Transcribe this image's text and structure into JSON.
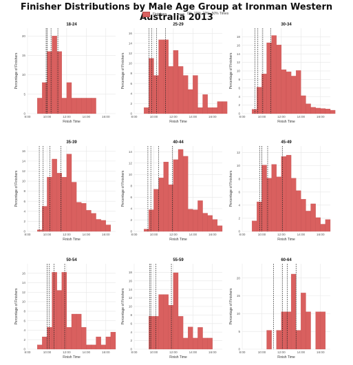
{
  "title": "Finisher Distributions by Male Age Group at Ironman Western Australia 2013",
  "legend": {
    "finishers_label": "Finishers",
    "times_label": "0%, 10%, 20%, 50% Times"
  },
  "colors": {
    "bar": "#d9605f",
    "bar_edge": "#c04d4d",
    "grid": "#e6e6e6",
    "line": "#222222"
  },
  "chart_data": [
    {
      "type": "bar",
      "title": "18-24",
      "xlabel": "Finish Time",
      "ylabel": "Percentage of Finishers",
      "xlim": [
        8,
        17
      ],
      "ylim": [
        0,
        22
      ],
      "xticks": [
        {
          "v": 8,
          "label": "8:00"
        },
        {
          "v": 10,
          "label": "10:00"
        },
        {
          "v": 12,
          "label": "12:00"
        },
        {
          "v": 14,
          "label": "14:00"
        },
        {
          "v": 16,
          "label": "16:00"
        }
      ],
      "yticks": [
        0,
        5,
        10,
        15,
        20
      ],
      "bin_start": 9.0,
      "bin_width": 0.5,
      "values": [
        4,
        8,
        16,
        20,
        16,
        4,
        8,
        4,
        4,
        4,
        4,
        4
      ],
      "marker_times": [
        9.9,
        10.0,
        10.4,
        11.1
      ]
    },
    {
      "type": "bar",
      "title": "25-29",
      "xlabel": "Finish Time",
      "ylabel": "Percentage of Finishers",
      "xlim": [
        8,
        17
      ],
      "ylim": [
        0,
        17
      ],
      "xticks": [
        {
          "v": 8,
          "label": "8:00"
        },
        {
          "v": 10,
          "label": "10:00"
        },
        {
          "v": 12,
          "label": "12:00"
        },
        {
          "v": 14,
          "label": "14:00"
        },
        {
          "v": 16,
          "label": "16:00"
        }
      ],
      "yticks": [
        0,
        2,
        4,
        6,
        8,
        10,
        12,
        14,
        16
      ],
      "bin_start": 9.0,
      "bin_width": 0.5,
      "values": [
        1.2,
        11,
        7.6,
        14.7,
        14.7,
        9.4,
        12.6,
        9.4,
        7.6,
        4.8,
        7.6,
        1.2,
        3.8,
        1.2,
        1.2,
        2.4,
        2.4
      ],
      "marker_times": [
        9.5,
        9.8,
        10.3,
        11.2
      ]
    },
    {
      "type": "bar",
      "title": "30-34",
      "xlabel": "Finish Time",
      "ylabel": "Percentage of Finishers",
      "xlim": [
        8,
        17
      ],
      "ylim": [
        0,
        20
      ],
      "xticks": [
        {
          "v": 8,
          "label": "8:00"
        },
        {
          "v": 10,
          "label": "10:00"
        },
        {
          "v": 12,
          "label": "12:00"
        },
        {
          "v": 14,
          "label": "14:00"
        },
        {
          "v": 16,
          "label": "16:00"
        }
      ],
      "yticks": [
        0,
        2,
        4,
        6,
        8,
        10,
        12,
        14,
        16,
        18
      ],
      "bin_start": 9.0,
      "bin_width": 0.5,
      "values": [
        1,
        6.2,
        9.3,
        16.6,
        18.3,
        16.1,
        10.3,
        9.8,
        8.8,
        10.1,
        4.2,
        2.3,
        1.5,
        1.3,
        1.2,
        1.1,
        0.8
      ],
      "marker_times": [
        9.3,
        9.6,
        10.1,
        10.9
      ]
    },
    {
      "type": "bar",
      "title": "35-39",
      "xlabel": "Finish Time",
      "ylabel": "Percentage of Finishers",
      "xlim": [
        8,
        17
      ],
      "ylim": [
        0,
        17
      ],
      "xticks": [
        {
          "v": 8,
          "label": "8:00"
        },
        {
          "v": 10,
          "label": "10:00"
        },
        {
          "v": 12,
          "label": "12:00"
        },
        {
          "v": 14,
          "label": "14:00"
        },
        {
          "v": 16,
          "label": "16:00"
        }
      ],
      "yticks": [
        0,
        2,
        4,
        6,
        8,
        10,
        12,
        14,
        16
      ],
      "bin_start": 9.0,
      "bin_width": 0.5,
      "values": [
        0.3,
        5,
        10.8,
        14.4,
        11.6,
        10.8,
        15.4,
        9.8,
        5.8,
        5.6,
        4.2,
        3.6,
        2.4,
        2.2,
        1.3
      ],
      "marker_times": [
        9.2,
        9.6,
        10.3,
        11.4
      ]
    },
    {
      "type": "bar",
      "title": "40-44",
      "xlabel": "Finish Time",
      "ylabel": "Percentage of Finishers",
      "xlim": [
        8,
        17
      ],
      "ylim": [
        0,
        15
      ],
      "xticks": [
        {
          "v": 8,
          "label": "8:00"
        },
        {
          "v": 10,
          "label": "10:00"
        },
        {
          "v": 12,
          "label": "12:00"
        },
        {
          "v": 14,
          "label": "14:00"
        },
        {
          "v": 16,
          "label": "16:00"
        }
      ],
      "yticks": [
        0,
        2,
        4,
        6,
        8,
        10,
        12,
        14
      ],
      "bin_start": 9.0,
      "bin_width": 0.5,
      "values": [
        0.4,
        3.8,
        7.4,
        9.4,
        12.2,
        8.2,
        12.6,
        14.4,
        13.2,
        3.9,
        3.8,
        5.4,
        3.2,
        2.8,
        2.1,
        1.0
      ],
      "marker_times": [
        9.4,
        9.7,
        10.5,
        11.9
      ]
    },
    {
      "type": "bar",
      "title": "45-49",
      "xlabel": "Finish Time",
      "ylabel": "Percentage of Finishers",
      "xlim": [
        8,
        17
      ],
      "ylim": [
        0,
        13
      ],
      "xticks": [
        {
          "v": 8,
          "label": "8:00"
        },
        {
          "v": 10,
          "label": "10:00"
        },
        {
          "v": 12,
          "label": "12:00"
        },
        {
          "v": 14,
          "label": "14:00"
        },
        {
          "v": 16,
          "label": "16:00"
        }
      ],
      "yticks": [
        0,
        2,
        4,
        6,
        8,
        10,
        12
      ],
      "bin_start": 9.0,
      "bin_width": 0.5,
      "values": [
        1.6,
        4.5,
        10.1,
        8.1,
        10.2,
        8.3,
        11.4,
        11.6,
        8.1,
        6.2,
        4.9,
        3.1,
        4.2,
        2.1,
        1.1,
        1.8
      ],
      "marker_times": [
        9.8,
        10.0,
        10.6,
        12.1
      ]
    },
    {
      "type": "bar",
      "title": "50-54",
      "xlabel": "Finish Time",
      "ylabel": "Percentage of Finishers",
      "xlim": [
        8,
        17
      ],
      "ylim": [
        0,
        18
      ],
      "xticks": [
        {
          "v": 8,
          "label": "8:00"
        },
        {
          "v": 10,
          "label": "10:00"
        },
        {
          "v": 12,
          "label": "12:00"
        },
        {
          "v": 14,
          "label": "14:00"
        },
        {
          "v": 16,
          "label": "16:00"
        }
      ],
      "yticks": [
        0,
        2,
        4,
        6,
        8,
        10,
        12,
        14,
        16
      ],
      "bin_start": 9.0,
      "bin_width": 0.5,
      "values": [
        0.9,
        2.6,
        4.6,
        16.2,
        12.4,
        16.2,
        4.6,
        7.4,
        7.4,
        4.6,
        0.9,
        0.9,
        2.6,
        0.9,
        2.6,
        3.6
      ],
      "marker_times": [
        10.0,
        10.2,
        10.7,
        11.8
      ]
    },
    {
      "type": "bar",
      "title": "55-59",
      "xlabel": "Finish Time",
      "ylabel": "Percentage of Finishers",
      "xlim": [
        8,
        17
      ],
      "ylim": [
        0,
        20
      ],
      "xticks": [
        {
          "v": 8,
          "label": "8:00"
        },
        {
          "v": 10,
          "label": "10:00"
        },
        {
          "v": 12,
          "label": "12:00"
        },
        {
          "v": 14,
          "label": "14:00"
        },
        {
          "v": 16,
          "label": "16:00"
        }
      ],
      "yticks": [
        0,
        2,
        4,
        6,
        8,
        10,
        12,
        14,
        16,
        18
      ],
      "bin_start": 9.5,
      "bin_width": 0.5,
      "values": [
        7.7,
        7.7,
        12.8,
        12.8,
        10.3,
        17.9,
        7.7,
        2.6,
        5.2,
        2.6,
        5.1,
        2.6,
        2.6
      ],
      "marker_times": [
        9.6,
        9.7,
        10.2,
        11.8
      ]
    },
    {
      "type": "bar",
      "title": "60-64",
      "xlabel": "Finish Time",
      "ylabel": "Percentage of Finishers",
      "xlim": [
        8,
        17
      ],
      "ylim": [
        0,
        24
      ],
      "xticks": [
        {
          "v": 8,
          "label": "8:00"
        },
        {
          "v": 10,
          "label": "10:00"
        },
        {
          "v": 12,
          "label": "12:00"
        },
        {
          "v": 14,
          "label": "14:00"
        },
        {
          "v": 16,
          "label": "16:00"
        }
      ],
      "yticks": [
        0,
        5,
        10,
        15,
        20
      ],
      "bin_start": 10.5,
      "bin_width": 0.5,
      "values": [
        5.3,
        0,
        5.3,
        10.5,
        10.5,
        21.1,
        5.3,
        15.8,
        10.5,
        0,
        10.5,
        10.5
      ],
      "marker_times": [
        11.2,
        12.1,
        12.6,
        13.5
      ]
    }
  ]
}
